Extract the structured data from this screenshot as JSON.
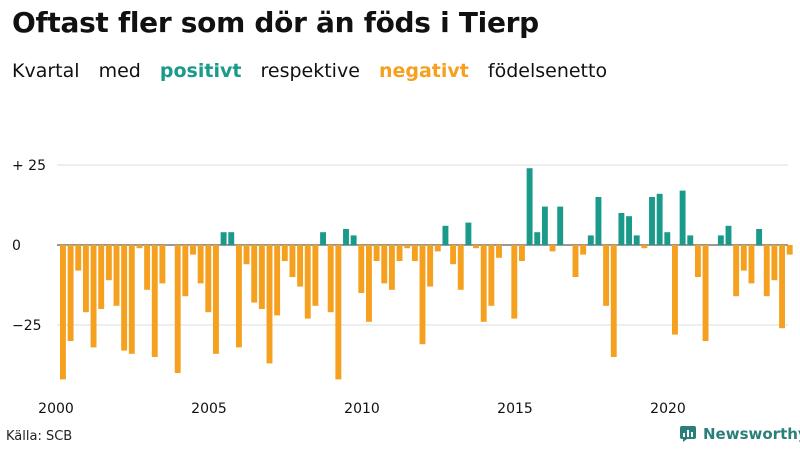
{
  "title": "Oftast fler som dör än föds i Tierp",
  "subtitle": {
    "part1": "Kvartal",
    "part2": "med",
    "positive": "positivt",
    "part3": "respektive",
    "negative": "negativt",
    "part4": "födelsenetto"
  },
  "colors": {
    "positive": "#1a9a8a",
    "negative": "#f5a01e",
    "grid": "#dddddd",
    "axis": "#333333"
  },
  "source": "Källa: SCB",
  "brand": "Newsworthy",
  "chart_data": {
    "type": "bar",
    "title": "Oftast fler som dör än föds i Tierp",
    "xlabel": "",
    "ylabel": "",
    "ylim": [
      -45,
      30
    ],
    "yticks": [
      25,
      0,
      -25
    ],
    "ytick_labels": [
      "+ 25",
      "0",
      "−25"
    ],
    "x_tick_labels": [
      "2000",
      "2005",
      "2010",
      "2015",
      "2020"
    ],
    "x_tick_years": [
      2000,
      2005,
      2010,
      2015,
      2020
    ],
    "start_year": 2000,
    "periods_per_year": 4,
    "unit": "kvartal (quarters), 2000 Q1 – 2023 Q4",
    "values": [
      -42,
      -30,
      -8,
      -21,
      -32,
      -20,
      -11,
      -19,
      -33,
      -34,
      -1,
      -14,
      -35,
      -12,
      0,
      -40,
      -16,
      -3,
      -12,
      -21,
      -34,
      4,
      4,
      -32,
      -6,
      -18,
      -20,
      -37,
      -22,
      -5,
      -10,
      -13,
      -23,
      -19,
      4,
      -21,
      -42,
      5,
      3,
      -15,
      -24,
      -5,
      -12,
      -14,
      -5,
      -1,
      -5,
      -31,
      -13,
      -2,
      6,
      -6,
      -14,
      7,
      -1,
      -24,
      -19,
      -4,
      0,
      -23,
      -5,
      24,
      4,
      12,
      -2,
      12,
      0,
      -10,
      -3,
      3,
      15,
      -19,
      -35,
      10,
      9,
      3,
      -1,
      15,
      16,
      4,
      -28,
      17,
      3,
      -10,
      -30,
      0,
      3,
      6,
      -16,
      -8,
      -12,
      5,
      -16,
      -11,
      -26,
      -3
    ]
  }
}
